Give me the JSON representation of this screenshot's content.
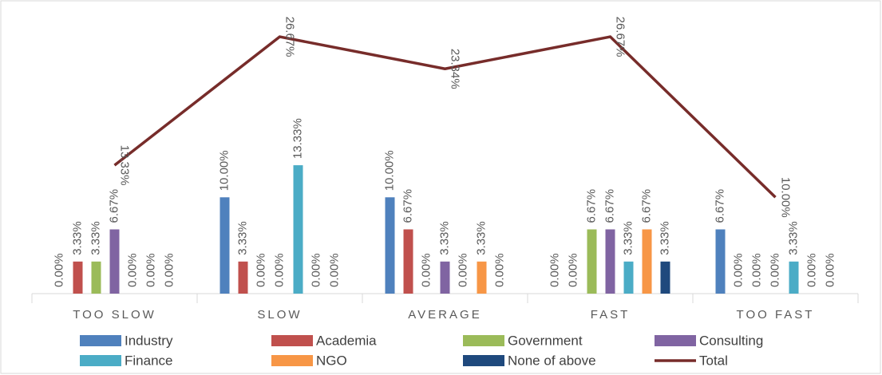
{
  "chart_data": {
    "type": "bar",
    "categories": [
      "TOO SLOW",
      "SLOW",
      "AVERAGE",
      "FAST",
      "TOO FAST"
    ],
    "ylim": [
      0,
      28
    ],
    "series": [
      {
        "name": "Industry",
        "color": "#4f81bd",
        "values": [
          0,
          10,
          10,
          0,
          6.67
        ],
        "value_labels": [
          "0.00%",
          "10.00%",
          "10.00%",
          "0.00%",
          "6.67%"
        ]
      },
      {
        "name": "Academia",
        "color": "#c0504d",
        "values": [
          3.33,
          3.33,
          6.67,
          0,
          0
        ],
        "value_labels": [
          "3.33%",
          "3.33%",
          "6.67%",
          "0.00%",
          "0.00%"
        ]
      },
      {
        "name": "Government",
        "color": "#9bbb59",
        "values": [
          3.33,
          0,
          0,
          6.67,
          0
        ],
        "value_labels": [
          "3.33%",
          "0.00%",
          "0.00%",
          "6.67%",
          "0.00%"
        ]
      },
      {
        "name": "Consulting",
        "color": "#8064a2",
        "values": [
          6.67,
          0,
          3.33,
          6.67,
          0
        ],
        "value_labels": [
          "6.67%",
          "0.00%",
          "3.33%",
          "6.67%",
          "0.00%"
        ]
      },
      {
        "name": "Finance",
        "color": "#4bacc6",
        "values": [
          0,
          13.33,
          0,
          3.33,
          3.33
        ],
        "value_labels": [
          "0.00%",
          "13.33%",
          "0.00%",
          "3.33%",
          "3.33%"
        ]
      },
      {
        "name": "NGO",
        "color": "#f79646",
        "values": [
          0,
          0,
          3.33,
          6.67,
          0
        ],
        "value_labels": [
          "0.00%",
          "0.00%",
          "3.33%",
          "6.67%",
          "0.00%"
        ]
      },
      {
        "name": "None of above",
        "color": "#1f497d",
        "values": [
          0,
          0,
          0,
          3.33,
          0
        ],
        "value_labels": [
          "0.00%",
          "0.00%",
          "0.00%",
          "3.33%",
          "0.00%"
        ]
      },
      {
        "name": "Total",
        "type": "line",
        "color": "#772c2a",
        "values": [
          13.33,
          26.67,
          23.34,
          26.67,
          10.0
        ],
        "value_labels": [
          "13.33%",
          "26.67%",
          "23.34%",
          "26.67%",
          "10.00%"
        ]
      }
    ]
  }
}
